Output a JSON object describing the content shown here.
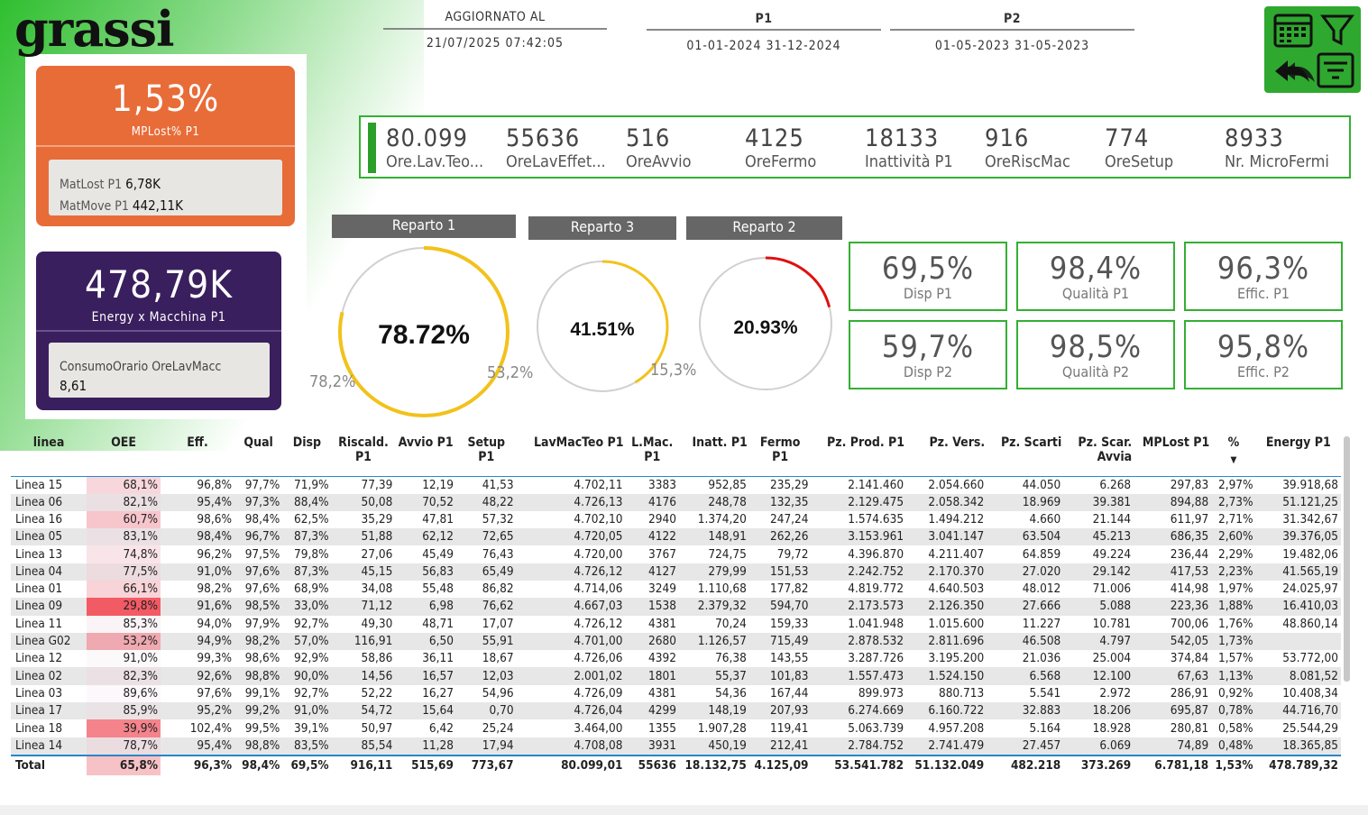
{
  "brand": {
    "logo": "grassi"
  },
  "header": {
    "updated_label": "AGGIORNATO AL",
    "updated_value": "21/07/2025 07:42:05",
    "p1_label": "P1",
    "p1_value": "01-01-2024 31-12-2024",
    "p2_label": "P2",
    "p2_value": "01-05-2023 31-05-2023"
  },
  "toolbar": {
    "icons": [
      "calendar-icon",
      "filter-icon",
      "back-icon",
      "filter-list-icon"
    ],
    "bg_color": "#2fa82f"
  },
  "card_matlost": {
    "value": "1,53%",
    "label": "MPLost% P1",
    "matlost_label": "MatLost P1",
    "matlost_value": "6,78K",
    "matmove_label": "MatMove P1",
    "matmove_value": "442,11K",
    "color": "#e86c38"
  },
  "card_energy": {
    "value": "478,79K",
    "label": "Energy x Macchina P1",
    "sub_label": "ConsumoOrario OreLavMacc",
    "sub_value": "8,61",
    "color": "#3a1f5e"
  },
  "kpi_strip": [
    {
      "value": "80.099",
      "label": "Ore.Lav.Teo..."
    },
    {
      "value": "55636",
      "label": "OreLavEffet..."
    },
    {
      "value": "516",
      "label": "OreAvvio"
    },
    {
      "value": "4125",
      "label": "OreFermo"
    },
    {
      "value": "18133",
      "label": "Inattività P1"
    },
    {
      "value": "916",
      "label": "OreRiscMac"
    },
    {
      "value": "774",
      "label": "OreSetup"
    },
    {
      "value": "8933",
      "label": "Nr. MicroFermi"
    }
  ],
  "gauges": [
    {
      "title": "Reparto 1",
      "value": "78.72%",
      "fraction": 0.7872,
      "left_label": "78,2%",
      "right_label": "53,2%",
      "color": "#f2c21b"
    },
    {
      "title": "Reparto 3",
      "value": "41.51%",
      "fraction": 0.4151,
      "left_label": "",
      "right_label": "15,3%",
      "color": "#f2c21b"
    },
    {
      "title": "Reparto 2",
      "value": "20.93%",
      "fraction": 0.2093,
      "left_label": "",
      "right_label": "",
      "color": "#e01010"
    }
  ],
  "metric_cards": [
    {
      "value": "69,5%",
      "label": "Disp P1"
    },
    {
      "value": "98,4%",
      "label": "Qualità P1"
    },
    {
      "value": "96,3%",
      "label": "Effic. P1"
    },
    {
      "value": "59,7%",
      "label": "Disp P2"
    },
    {
      "value": "98,5%",
      "label": "Qualità P2"
    },
    {
      "value": "95,8%",
      "label": "Effic. P2"
    }
  ],
  "table": {
    "columns": [
      "linea",
      "OEE",
      "Eff.",
      "Qual",
      "Disp",
      "Riscald. P1",
      "Avvio P1",
      "Setup P1",
      "LavMacTeo P1",
      "L.Mac. P1",
      "Inatt. P1",
      "Fermo P1",
      "Pz. Prod. P1",
      "Pz. Vers.",
      "Pz. Scarti",
      "Pz. Scar. Avvia",
      "MPLost P1",
      "%",
      "Energy P1"
    ],
    "sort_indicator": "▼",
    "rows": [
      [
        "Linea 15",
        "68,1%",
        "96,8%",
        "97,7%",
        "71,9%",
        "77,39",
        "12,19",
        "41,53",
        "4.702,11",
        "3383",
        "952,85",
        "235,29",
        "2.141.460",
        "2.054.660",
        "44.050",
        "6.268",
        "297,83",
        "2,97%",
        "39.918,68"
      ],
      [
        "Linea 06",
        "82,1%",
        "95,4%",
        "97,3%",
        "88,4%",
        "50,08",
        "70,52",
        "48,22",
        "4.726,13",
        "4176",
        "248,78",
        "132,35",
        "2.129.475",
        "2.058.342",
        "18.969",
        "39.381",
        "894,88",
        "2,73%",
        "51.121,25"
      ],
      [
        "Linea 16",
        "60,7%",
        "98,6%",
        "98,4%",
        "62,5%",
        "35,29",
        "47,81",
        "57,32",
        "4.702,10",
        "2940",
        "1.374,20",
        "247,24",
        "1.574.635",
        "1.494.212",
        "4.660",
        "21.144",
        "611,97",
        "2,71%",
        "31.342,67"
      ],
      [
        "Linea 05",
        "83,1%",
        "98,4%",
        "96,7%",
        "87,3%",
        "51,88",
        "62,12",
        "72,65",
        "4.720,05",
        "4122",
        "148,91",
        "262,26",
        "3.153.961",
        "3.041.147",
        "63.504",
        "45.213",
        "686,35",
        "2,60%",
        "39.376,05"
      ],
      [
        "Linea 13",
        "74,8%",
        "96,2%",
        "97,5%",
        "79,8%",
        "27,06",
        "45,49",
        "76,43",
        "4.720,00",
        "3767",
        "724,75",
        "79,72",
        "4.396.870",
        "4.211.407",
        "64.859",
        "49.224",
        "236,44",
        "2,29%",
        "19.482,06"
      ],
      [
        "Linea 04",
        "77,5%",
        "91,0%",
        "97,6%",
        "87,3%",
        "45,15",
        "56,83",
        "65,49",
        "4.726,12",
        "4127",
        "279,99",
        "151,53",
        "2.242.752",
        "2.170.370",
        "27.020",
        "29.142",
        "417,53",
        "2,23%",
        "41.565,19"
      ],
      [
        "Linea 01",
        "66,1%",
        "98,2%",
        "97,6%",
        "68,9%",
        "34,08",
        "55,48",
        "86,82",
        "4.714,06",
        "3249",
        "1.110,68",
        "177,82",
        "4.819.772",
        "4.640.503",
        "48.012",
        "71.006",
        "414,98",
        "1,97%",
        "24.025,97"
      ],
      [
        "Linea 09",
        "29,8%",
        "91,6%",
        "98,5%",
        "33,0%",
        "71,12",
        "6,98",
        "76,62",
        "4.667,03",
        "1538",
        "2.379,32",
        "594,70",
        "2.173.573",
        "2.126.350",
        "27.666",
        "5.088",
        "223,36",
        "1,88%",
        "16.410,03"
      ],
      [
        "Linea 11",
        "85,3%",
        "94,0%",
        "97,9%",
        "92,7%",
        "49,30",
        "48,71",
        "17,07",
        "4.726,12",
        "4381",
        "70,24",
        "159,33",
        "1.041.948",
        "1.015.600",
        "11.227",
        "10.781",
        "700,06",
        "1,76%",
        "48.860,14"
      ],
      [
        "Linea G02",
        "53,2%",
        "94,9%",
        "98,2%",
        "57,0%",
        "116,91",
        "6,50",
        "55,91",
        "4.701,00",
        "2680",
        "1.126,57",
        "715,49",
        "2.878.532",
        "2.811.696",
        "46.508",
        "4.797",
        "542,05",
        "1,73%",
        ""
      ],
      [
        "Linea 12",
        "91,0%",
        "99,3%",
        "98,6%",
        "92,9%",
        "58,86",
        "36,11",
        "18,67",
        "4.726,06",
        "4392",
        "76,38",
        "143,55",
        "3.287.726",
        "3.195.200",
        "21.036",
        "25.004",
        "374,84",
        "1,57%",
        "53.772,00"
      ],
      [
        "Linea 02",
        "82,3%",
        "92,6%",
        "98,8%",
        "90,0%",
        "14,56",
        "16,57",
        "12,03",
        "2.001,02",
        "1801",
        "55,37",
        "101,83",
        "1.557.473",
        "1.524.150",
        "6.568",
        "12.100",
        "67,63",
        "1,13%",
        "8.081,52"
      ],
      [
        "Linea 03",
        "89,6%",
        "97,6%",
        "99,1%",
        "92,7%",
        "52,22",
        "16,27",
        "54,96",
        "4.726,09",
        "4381",
        "54,36",
        "167,44",
        "899.973",
        "880.713",
        "5.541",
        "2.972",
        "286,91",
        "0,92%",
        "10.408,34"
      ],
      [
        "Linea 17",
        "85,9%",
        "95,2%",
        "99,2%",
        "91,0%",
        "54,72",
        "15,64",
        "0,70",
        "4.726,04",
        "4299",
        "148,19",
        "207,93",
        "6.274.669",
        "6.160.722",
        "32.883",
        "18.206",
        "695,87",
        "0,78%",
        "44.716,70"
      ],
      [
        "Linea 18",
        "39,9%",
        "102,4%",
        "99,5%",
        "39,1%",
        "50,97",
        "6,42",
        "25,24",
        "3.464,00",
        "1355",
        "1.907,28",
        "119,41",
        "5.063.739",
        "4.957.208",
        "5.164",
        "18.928",
        "280,81",
        "0,58%",
        "25.544,29"
      ],
      [
        "Linea 14",
        "78,7%",
        "95,4%",
        "98,8%",
        "83,5%",
        "85,54",
        "11,28",
        "17,94",
        "4.708,08",
        "3931",
        "450,19",
        "212,41",
        "2.784.752",
        "2.741.479",
        "27.457",
        "6.069",
        "74,89",
        "0,48%",
        "18.365,85"
      ]
    ],
    "oee_fractions": [
      0.681,
      0.821,
      0.607,
      0.831,
      0.748,
      0.775,
      0.661,
      0.298,
      0.853,
      0.532,
      0.91,
      0.823,
      0.896,
      0.859,
      0.399,
      0.787
    ],
    "total": [
      "Total",
      "65,8%",
      "96,3%",
      "98,4%",
      "69,5%",
      "916,11",
      "515,69",
      "773,67",
      "80.099,01",
      "55636",
      "18.132,75",
      "4.125,09",
      "53.541.782",
      "51.132.049",
      "482.218",
      "373.269",
      "6.781,18",
      "1,53%",
      "478.789,32"
    ],
    "total_oee_fraction": 0.658
  }
}
